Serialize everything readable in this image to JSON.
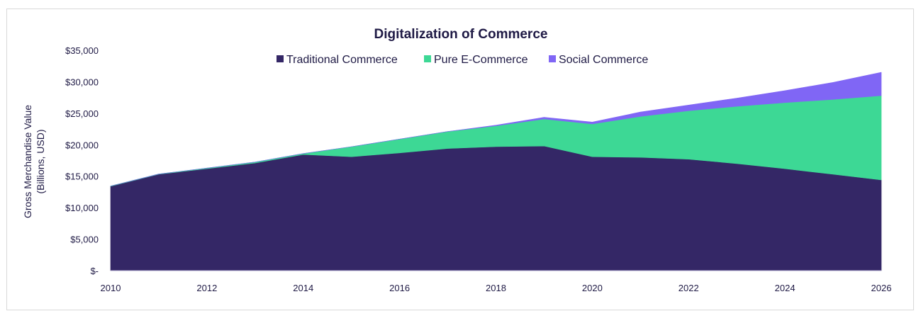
{
  "chart_data": {
    "type": "area",
    "stacked": true,
    "title": "Digitalization of Commerce",
    "xlabel": "",
    "ylabel": "Gross Merchandise Value",
    "ylabel_sub": "(Billions, USD)",
    "ylim": [
      0,
      35000
    ],
    "xlim": [
      2010,
      2026
    ],
    "grid": false,
    "legend_position": "top-center",
    "x": [
      2010,
      2011,
      2012,
      2013,
      2014,
      2015,
      2016,
      2017,
      2018,
      2019,
      2020,
      2021,
      2022,
      2023,
      2024,
      2025,
      2026
    ],
    "x_ticks": [
      "2010",
      "2012",
      "2014",
      "2016",
      "2018",
      "2020",
      "2022",
      "2024",
      "2026"
    ],
    "x_tick_values": [
      2010,
      2012,
      2014,
      2016,
      2018,
      2020,
      2022,
      2024,
      2026
    ],
    "y_ticks": [
      "$-",
      "$5,000",
      "$10,000",
      "$15,000",
      "$20,000",
      "$25,000",
      "$30,000",
      "$35,000"
    ],
    "y_tick_values": [
      0,
      5000,
      10000,
      15000,
      20000,
      25000,
      30000,
      35000
    ],
    "series": [
      {
        "name": "Traditional Commerce",
        "color": "#342766",
        "values": [
          13400,
          15300,
          16200,
          17100,
          18450,
          18100,
          18700,
          19400,
          19700,
          19800,
          18100,
          18000,
          17700,
          17000,
          16200,
          15300,
          14400
        ]
      },
      {
        "name": "Pure E-Commerce",
        "color": "#3dd895",
        "values": [
          50,
          50,
          100,
          150,
          150,
          1600,
          2200,
          2700,
          3300,
          4300,
          5200,
          6500,
          7700,
          9100,
          10500,
          11900,
          13400
        ]
      },
      {
        "name": "Social Commerce",
        "color": "#8066f5",
        "values": [
          0,
          0,
          0,
          0,
          0,
          0,
          0,
          0,
          100,
          250,
          300,
          700,
          900,
          1300,
          1900,
          2700,
          3700
        ]
      }
    ]
  }
}
